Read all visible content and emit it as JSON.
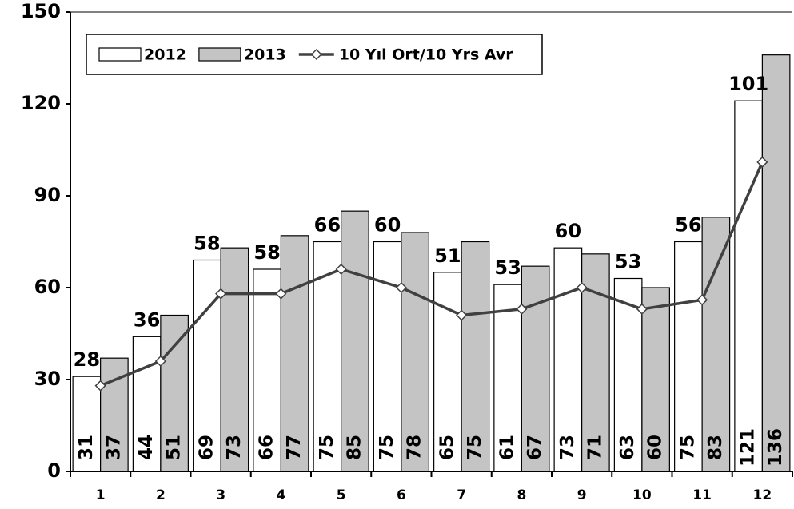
{
  "chart_data": {
    "type": "bar",
    "categories": [
      "1",
      "2",
      "3",
      "4",
      "5",
      "6",
      "7",
      "8",
      "9",
      "10",
      "11",
      "12"
    ],
    "series": [
      {
        "name": "2012",
        "type": "bar",
        "color": "#ffffff",
        "values": [
          31,
          44,
          69,
          66,
          75,
          75,
          65,
          61,
          73,
          63,
          75,
          121
        ]
      },
      {
        "name": "2013",
        "type": "bar",
        "color": "#c4c4c4",
        "values": [
          37,
          51,
          73,
          77,
          85,
          78,
          75,
          67,
          71,
          60,
          83,
          136
        ]
      },
      {
        "name": "10 Yıl Ort/10 Yrs Avr",
        "type": "line",
        "color": "#404040",
        "values": [
          28,
          36,
          58,
          58,
          66,
          60,
          51,
          53,
          60,
          53,
          56,
          101
        ]
      }
    ],
    "ylim": [
      0,
      150
    ],
    "yticks": [
      0,
      30,
      60,
      90,
      120,
      150
    ],
    "legend_position": "upper left"
  }
}
